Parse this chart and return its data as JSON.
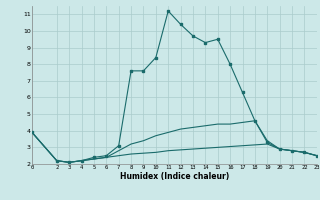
{
  "xlabel": "Humidex (Indice chaleur)",
  "xlim": [
    0,
    23
  ],
  "ylim": [
    2,
    11.5
  ],
  "bg_color": "#cce8e8",
  "grid_color": "#aacccc",
  "line_color": "#1a6b6b",
  "line1_x": [
    0,
    2,
    3,
    4,
    5,
    6,
    7,
    8,
    9,
    10,
    11,
    12,
    13,
    14,
    15,
    16,
    17,
    18,
    19,
    20,
    21,
    22,
    23
  ],
  "line1_y": [
    3.9,
    2.2,
    2.1,
    2.2,
    2.4,
    2.5,
    3.1,
    7.6,
    7.6,
    8.4,
    11.2,
    10.4,
    9.7,
    9.3,
    9.5,
    8.0,
    6.3,
    4.6,
    3.3,
    2.9,
    2.8,
    2.7,
    2.5
  ],
  "line2_x": [
    0,
    2,
    3,
    4,
    5,
    6,
    7,
    8,
    9,
    10,
    11,
    12,
    13,
    14,
    15,
    16,
    17,
    18,
    19,
    20,
    21,
    22,
    23
  ],
  "line2_y": [
    3.9,
    2.2,
    2.1,
    2.2,
    2.3,
    2.4,
    2.8,
    3.2,
    3.4,
    3.7,
    3.9,
    4.1,
    4.2,
    4.3,
    4.4,
    4.4,
    4.5,
    4.6,
    3.4,
    2.9,
    2.8,
    2.7,
    2.5
  ],
  "line3_x": [
    0,
    2,
    3,
    4,
    5,
    6,
    7,
    8,
    9,
    10,
    11,
    12,
    13,
    14,
    15,
    16,
    17,
    18,
    19,
    20,
    21,
    22,
    23
  ],
  "line3_y": [
    3.9,
    2.2,
    2.1,
    2.2,
    2.3,
    2.4,
    2.5,
    2.6,
    2.65,
    2.7,
    2.8,
    2.85,
    2.9,
    2.95,
    3.0,
    3.05,
    3.1,
    3.15,
    3.2,
    2.9,
    2.8,
    2.7,
    2.5
  ],
  "yticks": [
    2,
    3,
    4,
    5,
    6,
    7,
    8,
    9,
    10,
    11
  ],
  "xticks": [
    0,
    2,
    3,
    4,
    5,
    6,
    7,
    8,
    9,
    10,
    11,
    12,
    13,
    14,
    15,
    16,
    17,
    18,
    19,
    20,
    21,
    22,
    23
  ]
}
